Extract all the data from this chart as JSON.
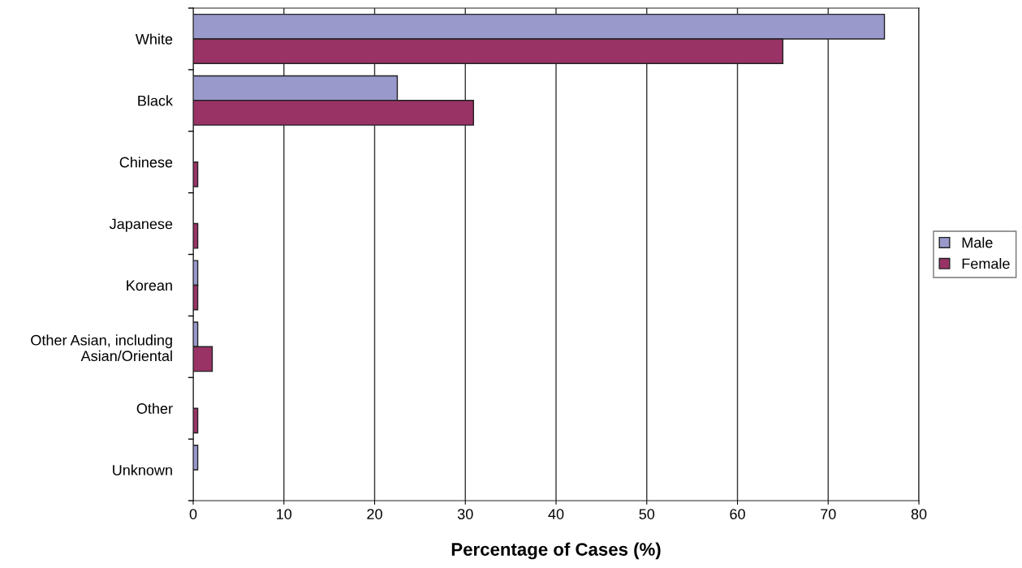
{
  "chart_data": {
    "type": "bar",
    "orientation": "horizontal",
    "xlabel": "Percentage of Cases (%)",
    "categories": [
      "White",
      "Black",
      "Chinese",
      "Japanese",
      "Korean",
      "Other Asian, including\nAsian/Oriental",
      "Other",
      "Unknown"
    ],
    "series": [
      {
        "name": "Male",
        "color": "#9999cc",
        "values": [
          76.2,
          22.5,
          null,
          null,
          0.5,
          0.5,
          null,
          0.5
        ]
      },
      {
        "name": "Female",
        "color": "#993366",
        "values": [
          65.0,
          30.9,
          0.5,
          0.5,
          0.5,
          2.1,
          0.5,
          null
        ]
      }
    ],
    "xlim": [
      0,
      80
    ],
    "xticks": [
      0,
      10,
      20,
      30,
      40,
      50,
      60,
      70,
      80
    ],
    "grid": "x",
    "legend": "right"
  }
}
